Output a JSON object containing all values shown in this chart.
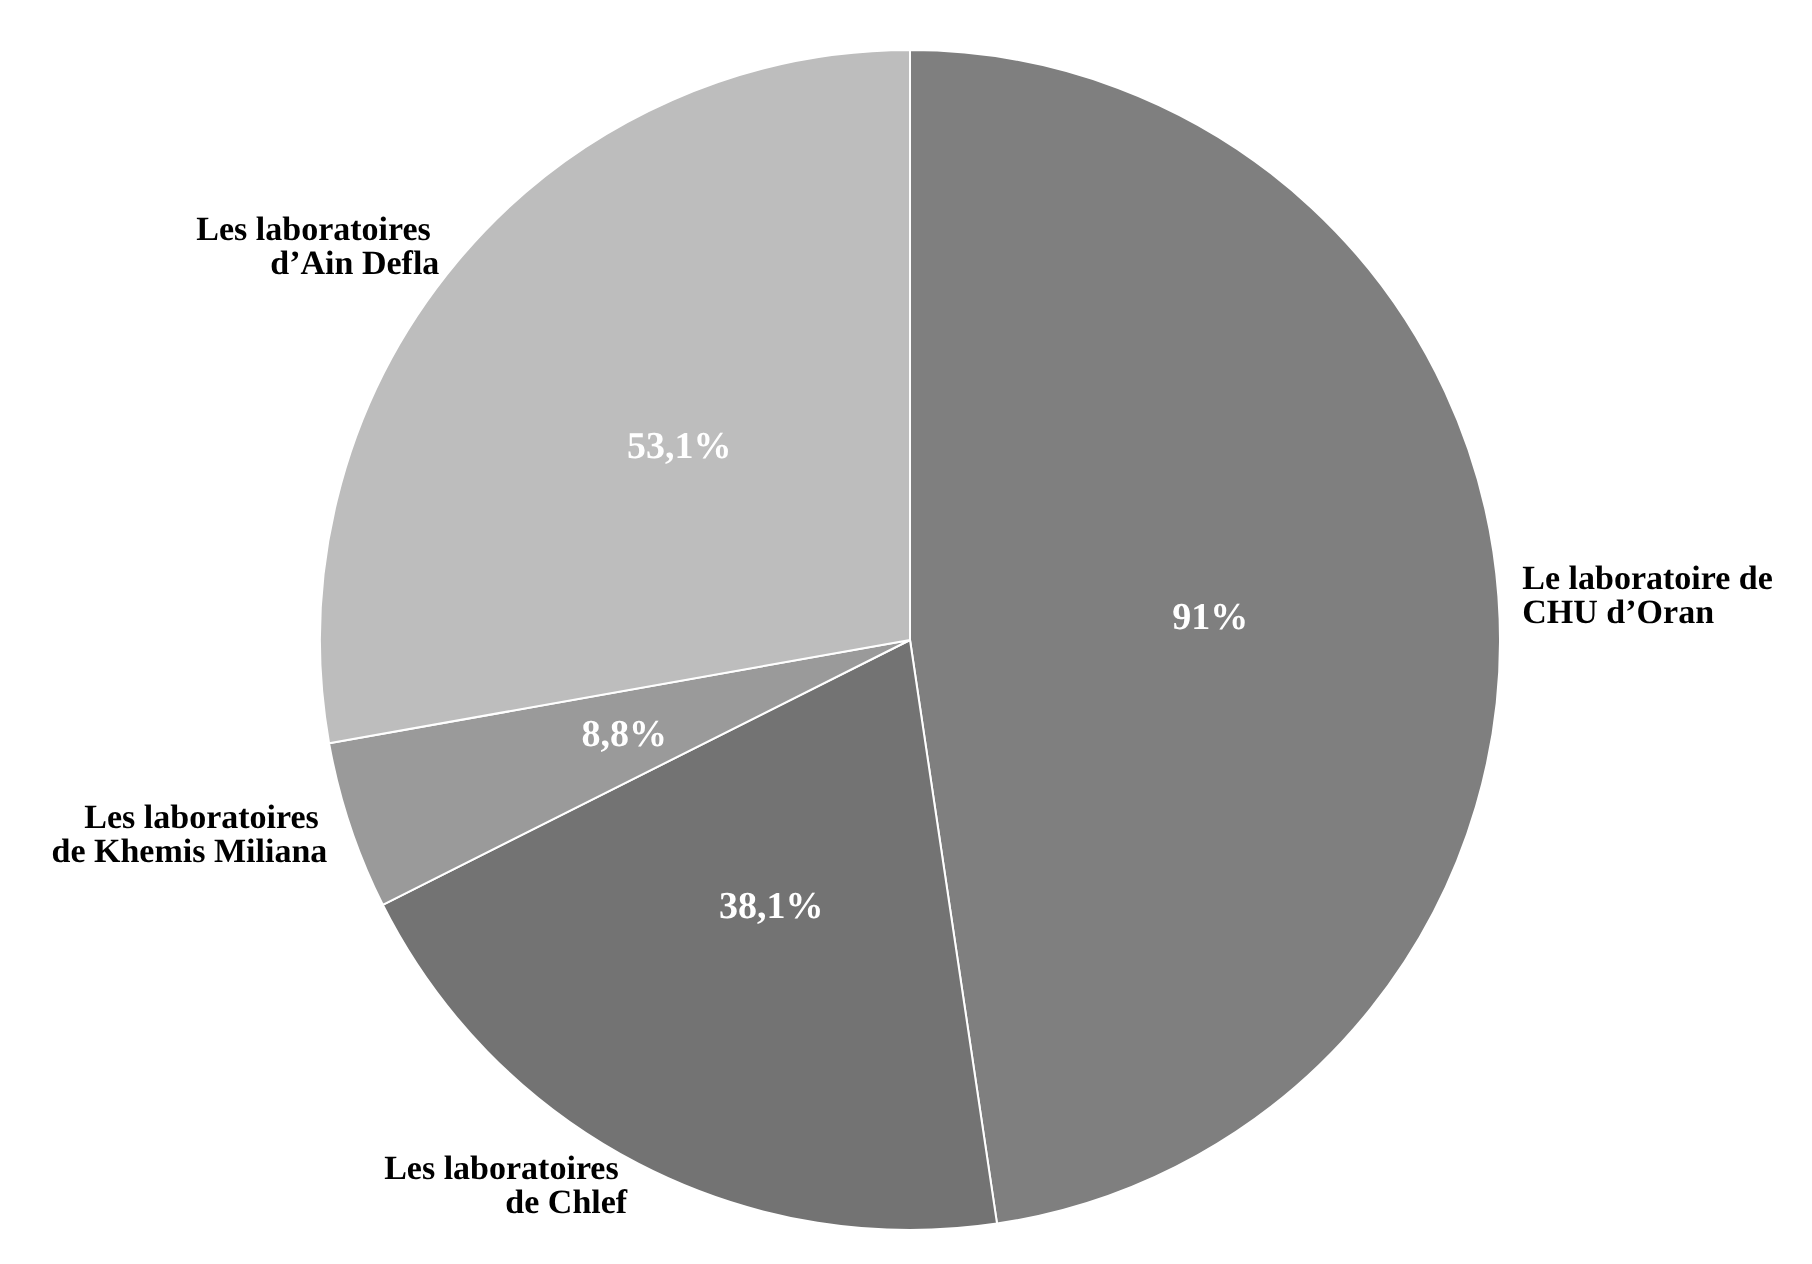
{
  "chart_data": {
    "type": "pie",
    "categories": [
      "Le laboratoire de CHU d’Oran",
      "Les laboratoires de Chlef",
      "Les laboratoires de Khemis Miliana",
      "Les laboratoires d’Ain Defla"
    ],
    "values": [
      91,
      38.1,
      8.8,
      53.1
    ],
    "value_labels": [
      "91%",
      "38,1%",
      "8,8%",
      "53,1%"
    ],
    "colors": [
      "#7f7f7f",
      "#737373",
      "#9a9a9a",
      "#bdbdbd"
    ]
  }
}
